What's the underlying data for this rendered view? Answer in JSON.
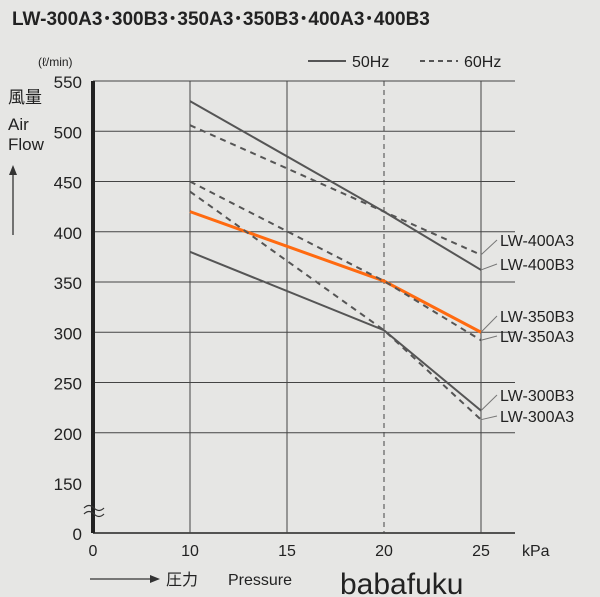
{
  "chart_data": {
    "type": "line",
    "title": "LW-300A3･300B3･350A3･350B3･400A3･400B3",
    "y_unit": "(ℓ/min)",
    "ylabel_jp": "風量",
    "ylabel": "Air Flow",
    "xlabel_jp": "圧力",
    "xlabel": "Pressure",
    "x_unit": "kPa",
    "x_ticks": [
      0,
      10,
      15,
      20,
      25
    ],
    "y_ticks": [
      0,
      150,
      200,
      250,
      300,
      350,
      400,
      450,
      500,
      550
    ],
    "ylim": [
      0,
      550
    ],
    "xlim": [
      0,
      25
    ],
    "y_axis_break": true,
    "grid": true,
    "legend": {
      "position": "top-right",
      "entries": [
        {
          "label": "50Hz",
          "style": "solid"
        },
        {
          "label": "60Hz",
          "style": "dashed"
        }
      ]
    },
    "x": [
      10,
      20,
      25
    ],
    "series": [
      {
        "name": "LW-400A3",
        "style": "dashed",
        "color": "#555555",
        "values": [
          506,
          420,
          377
        ]
      },
      {
        "name": "LW-400B3",
        "style": "solid",
        "color": "#555555",
        "values": [
          530,
          420,
          362
        ]
      },
      {
        "name": "LW-350B3",
        "style": "solid",
        "color": "#ff6a10",
        "values": [
          420,
          351,
          300
        ]
      },
      {
        "name": "LW-350A3",
        "style": "dashed",
        "color": "#555555",
        "values": [
          450,
          351,
          292
        ]
      },
      {
        "name": "LW-300B3",
        "style": "solid",
        "color": "#555555",
        "values": [
          380,
          302,
          222
        ]
      },
      {
        "name": "LW-300A3",
        "style": "dashed",
        "color": "#555555",
        "values": [
          440,
          302,
          213
        ]
      }
    ]
  },
  "watermark": "babafuku"
}
